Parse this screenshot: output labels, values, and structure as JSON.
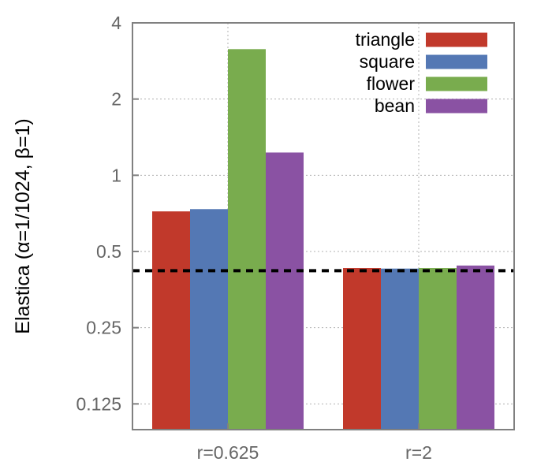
{
  "chart_data": {
    "type": "bar",
    "title": "",
    "xlabel": "",
    "ylabel": "Elastica (α=1/1024, β=1)",
    "yscale": "log2",
    "ylim": [
      0.1,
      4
    ],
    "yticks": [
      {
        "value": 0.125,
        "label": "0.125"
      },
      {
        "value": 0.25,
        "label": "0.25"
      },
      {
        "value": 0.5,
        "label": "0.5"
      },
      {
        "value": 1,
        "label": "1"
      },
      {
        "value": 2,
        "label": "2"
      },
      {
        "value": 4,
        "label": "4"
      }
    ],
    "categories": [
      "r=0.625",
      "r=2"
    ],
    "series": [
      {
        "name": "triangle",
        "color": "#c1392b",
        "values": [
          0.72,
          0.43
        ]
      },
      {
        "name": "square",
        "color": "#5478b4",
        "values": [
          0.735,
          0.428
        ]
      },
      {
        "name": "flower",
        "color": "#79ac4e",
        "values": [
          3.15,
          0.43
        ]
      },
      {
        "name": "bean",
        "color": "#8a52a3",
        "values": [
          1.23,
          0.44
        ]
      }
    ],
    "reference_line": {
      "value": 0.42,
      "style": "dashed",
      "color": "#000000"
    },
    "grid": true,
    "legend_position": "top-right"
  }
}
